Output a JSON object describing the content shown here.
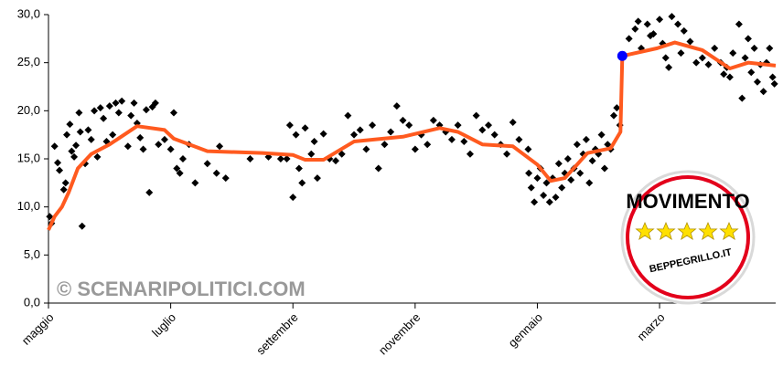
{
  "chart_data": {
    "type": "scatter",
    "xlim": [
      0,
      11.9
    ],
    "ylim": [
      0,
      30
    ],
    "xticks": [
      {
        "value": 0,
        "label": "maggio"
      },
      {
        "value": 2,
        "label": "luglio"
      },
      {
        "value": 4,
        "label": "settembre"
      },
      {
        "value": 6,
        "label": "novembre"
      },
      {
        "value": 8,
        "label": "gennaio"
      },
      {
        "value": 10,
        "label": "marzo"
      }
    ],
    "yticks": [
      {
        "value": 0,
        "label": "0,0"
      },
      {
        "value": 5,
        "label": "5,0"
      },
      {
        "value": 10,
        "label": "10,0"
      },
      {
        "value": 15,
        "label": "15,0"
      },
      {
        "value": 20,
        "label": "20,0"
      },
      {
        "value": 25,
        "label": "25,0"
      },
      {
        "value": 30,
        "label": "30,0"
      }
    ],
    "watermark": "© SCENARIPOLITICI.COM",
    "logo": {
      "title": "MOVIMENTO",
      "url": "BEPPEGRILLO.IT"
    },
    "series": [
      {
        "type": "scatter",
        "color": "#000000",
        "x": [
          0.02,
          0.05,
          0.1,
          0.15,
          0.18,
          0.25,
          0.28,
          0.3,
          0.35,
          0.38,
          0.42,
          0.45,
          0.5,
          0.52,
          0.55,
          0.6,
          0.65,
          0.7,
          0.75,
          0.8,
          0.85,
          0.9,
          0.95,
          1.0,
          1.05,
          1.1,
          1.15,
          1.2,
          1.3,
          1.35,
          1.4,
          1.45,
          1.5,
          1.55,
          1.6,
          1.65,
          1.7,
          1.75,
          1.8,
          1.9,
          2.0,
          2.05,
          2.1,
          2.15,
          2.2,
          2.3,
          2.4,
          2.6,
          2.75,
          2.8,
          2.9,
          3.3,
          3.6,
          3.8,
          3.9,
          3.95,
          4.0,
          4.05,
          4.1,
          4.15,
          4.2,
          4.3,
          4.35,
          4.4,
          4.5,
          4.6,
          4.7,
          4.8,
          4.9,
          5.0,
          5.1,
          5.2,
          5.3,
          5.4,
          5.5,
          5.6,
          5.7,
          5.8,
          5.9,
          6.0,
          6.1,
          6.2,
          6.3,
          6.4,
          6.5,
          6.6,
          6.7,
          6.8,
          6.9,
          7.0,
          7.1,
          7.2,
          7.3,
          7.4,
          7.5,
          7.6,
          7.7,
          7.85,
          7.86,
          7.9,
          7.95,
          8.0,
          8.05,
          8.1,
          8.15,
          8.2,
          8.25,
          8.3,
          8.35,
          8.4,
          8.45,
          8.5,
          8.55,
          8.6,
          8.65,
          8.7,
          8.75,
          8.8,
          8.85,
          8.9,
          8.95,
          9.0,
          9.05,
          9.1,
          9.15,
          9.2,
          9.25,
          9.3,
          9.35,
          9.5,
          9.6,
          9.65,
          9.7,
          9.8,
          9.85,
          9.9,
          10.0,
          10.05,
          10.1,
          10.15,
          10.2,
          10.3,
          10.35,
          10.4,
          10.5,
          10.6,
          10.7,
          10.8,
          10.9,
          11.0,
          11.05,
          11.1,
          11.15,
          11.2,
          11.3,
          11.35,
          11.4,
          11.45,
          11.5,
          11.55,
          11.6,
          11.65,
          11.7,
          11.75,
          11.8,
          11.85,
          11.88
        ],
        "values": [
          9.0,
          8.3,
          16.3,
          14.6,
          13.8,
          11.8,
          12.5,
          17.5,
          18.6,
          15.8,
          15.2,
          16.4,
          19.8,
          17.8,
          8.0,
          14.5,
          18.0,
          17.0,
          20.0,
          15.2,
          20.3,
          19.2,
          16.8,
          20.5,
          17.5,
          20.8,
          19.8,
          21.0,
          16.3,
          19.5,
          20.8,
          18.7,
          17.2,
          16.0,
          20.1,
          11.5,
          20.4,
          20.8,
          16.5,
          17.0,
          16.0,
          19.8,
          14.0,
          13.5,
          15.0,
          16.5,
          12.5,
          14.5,
          13.5,
          16.3,
          13.0,
          15.0,
          15.2,
          15.0,
          15.0,
          18.5,
          11.0,
          17.5,
          14.0,
          12.5,
          18.2,
          15.5,
          16.8,
          13.0,
          17.6,
          15.0,
          14.8,
          15.5,
          19.5,
          17.5,
          18.0,
          16.0,
          18.5,
          14.0,
          16.5,
          17.8,
          20.5,
          19.0,
          18.5,
          16.0,
          17.5,
          16.5,
          19.0,
          18.5,
          17.8,
          17.0,
          18.5,
          16.8,
          15.5,
          19.5,
          18.0,
          18.5,
          17.5,
          16.5,
          15.5,
          18.8,
          17.0,
          16.0,
          13.5,
          12.0,
          10.5,
          13.0,
          14.0,
          11.2,
          12.5,
          10.5,
          13.0,
          11.0,
          14.5,
          12.0,
          13.5,
          15.0,
          12.8,
          14.0,
          16.5,
          13.5,
          15.5,
          17.0,
          12.5,
          14.8,
          16.0,
          15.5,
          17.5,
          14.0,
          16.5,
          16.0,
          19.5,
          20.3,
          18.5,
          27.5,
          28.5,
          29.3,
          26.5,
          29.0,
          27.8,
          28.0,
          29.5,
          27.0,
          25.5,
          24.5,
          29.8,
          29.0,
          26.0,
          28.3,
          27.2,
          25.0,
          25.5,
          24.8,
          26.5,
          25.0,
          23.8,
          24.5,
          23.5,
          26.0,
          29.0,
          21.3,
          25.5,
          27.5,
          24.0,
          26.5,
          23.0,
          24.8,
          22.0,
          25.0,
          26.5,
          23.5,
          22.8
        ]
      },
      {
        "type": "line",
        "color": "#ff5a1f",
        "x": [
          0,
          0.1,
          0.22,
          0.33,
          0.48,
          0.7,
          1.0,
          1.45,
          1.9,
          2.05,
          2.6,
          3.5,
          4.0,
          4.2,
          4.5,
          5.0,
          5.8,
          6.4,
          6.7,
          7.1,
          7.6,
          8.0,
          8.22,
          8.45,
          8.82,
          9.2,
          9.36,
          9.39,
          9.96,
          10.25,
          10.7,
          11.15,
          11.45,
          11.9
        ],
        "values": [
          7.6,
          9.0,
          10.0,
          11.5,
          14.0,
          15.5,
          16.5,
          18.4,
          18.0,
          17.1,
          15.8,
          15.6,
          15.4,
          14.9,
          14.9,
          16.8,
          17.3,
          18.2,
          17.8,
          16.5,
          16.3,
          14.4,
          12.7,
          13.0,
          15.6,
          16.1,
          17.8,
          25.7,
          26.5,
          27.1,
          26.3,
          24.4,
          25.0,
          24.7
        ]
      },
      {
        "type": "point",
        "color": "#0000ff",
        "x": [
          9.39
        ],
        "values": [
          25.7
        ]
      }
    ]
  }
}
